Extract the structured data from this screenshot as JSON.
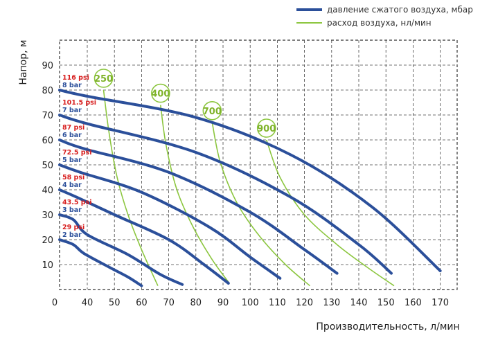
{
  "chart_data": {
    "type": "line",
    "legend": [
      {
        "label": "давление сжатого воздуха, мбар",
        "color": "#2b4f9a"
      },
      {
        "label": "расход воздуха, нл/мин",
        "color": "#8cc63f"
      }
    ],
    "ylabel": "Напор, м",
    "xlabel": "Производительность, л/мин",
    "ylim": [
      0,
      100
    ],
    "xlim": [
      0,
      180
    ],
    "x_zero_label": "0",
    "x_ticks": [
      40,
      50,
      60,
      70,
      80,
      90,
      100,
      110,
      120,
      130,
      140,
      150,
      160,
      170
    ],
    "y_ticks": [
      10,
      20,
      30,
      40,
      50,
      60,
      70,
      80,
      90
    ],
    "pressure_series": [
      {
        "bar_label": "2 bar",
        "psi_label": "29 psi",
        "shutoff": 20,
        "points": [
          [
            0,
            20
          ],
          [
            20,
            18
          ],
          [
            35,
            14.5
          ],
          [
            48,
            9
          ],
          [
            55,
            5
          ],
          [
            60,
            1.5
          ]
        ]
      },
      {
        "bar_label": "3 bar",
        "psi_label": "43.5 psi",
        "shutoff": 30,
        "points": [
          [
            0,
            30
          ],
          [
            20,
            28
          ],
          [
            40,
            22
          ],
          [
            55,
            14
          ],
          [
            67,
            6
          ],
          [
            75,
            2
          ]
        ]
      },
      {
        "bar_label": "4 bar",
        "psi_label": "58 psi",
        "shutoff": 40,
        "points": [
          [
            0,
            40
          ],
          [
            25,
            37
          ],
          [
            50,
            30
          ],
          [
            70,
            20
          ],
          [
            83,
            10
          ],
          [
            92,
            2.5
          ]
        ]
      },
      {
        "bar_label": "5 bar",
        "psi_label": "72.5 psi",
        "shutoff": 50,
        "points": [
          [
            0,
            50
          ],
          [
            30,
            47
          ],
          [
            60,
            39
          ],
          [
            85,
            25
          ],
          [
            100,
            13
          ],
          [
            111,
            4.5
          ]
        ]
      },
      {
        "bar_label": "6 bar",
        "psi_label": "87 psi",
        "shutoff": 60,
        "points": [
          [
            0,
            60
          ],
          [
            35,
            56.5
          ],
          [
            70,
            47
          ],
          [
            100,
            31
          ],
          [
            120,
            16
          ],
          [
            132,
            6.5
          ]
        ]
      },
      {
        "bar_label": "7 bar",
        "psi_label": "101.5 psi",
        "shutoff": 70,
        "points": [
          [
            0,
            70
          ],
          [
            40,
            66.5
          ],
          [
            80,
            55
          ],
          [
            115,
            37
          ],
          [
            140,
            18
          ],
          [
            152,
            6.5
          ]
        ]
      },
      {
        "bar_label": "8 bar",
        "psi_label": "116 psi",
        "shutoff": 80,
        "points": [
          [
            0,
            80
          ],
          [
            40,
            77.5
          ],
          [
            80,
            69
          ],
          [
            115,
            54
          ],
          [
            145,
            33
          ],
          [
            170,
            7.5
          ]
        ]
      }
    ],
    "airflow_series": [
      {
        "label": "250",
        "points": [
          [
            46,
            80
          ],
          [
            48,
            63
          ],
          [
            51,
            45
          ],
          [
            55,
            30
          ],
          [
            60,
            16
          ],
          [
            66,
            1.5
          ]
        ]
      },
      {
        "label": "400",
        "points": [
          [
            67,
            74
          ],
          [
            69,
            58
          ],
          [
            73,
            40
          ],
          [
            79,
            25
          ],
          [
            86,
            12
          ],
          [
            92,
            3
          ]
        ]
      },
      {
        "label": "700",
        "points": [
          [
            86,
            67
          ],
          [
            89,
            51
          ],
          [
            95,
            35
          ],
          [
            103,
            22
          ],
          [
            113,
            10
          ],
          [
            122,
            1.5
          ]
        ]
      },
      {
        "label": "900",
        "points": [
          [
            106,
            60
          ],
          [
            111,
            45
          ],
          [
            120,
            30
          ],
          [
            132,
            18
          ],
          [
            143,
            9
          ],
          [
            153,
            1.5
          ]
        ]
      }
    ]
  }
}
